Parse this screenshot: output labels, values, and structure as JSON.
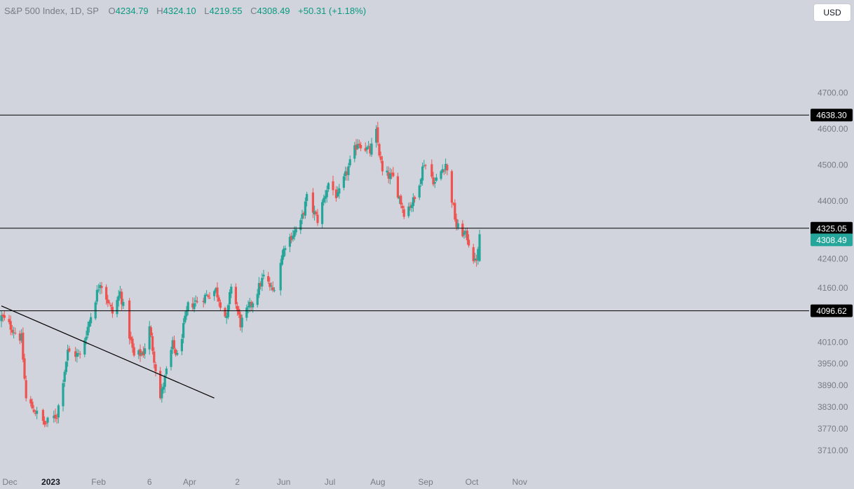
{
  "legend": {
    "symbol": "S&P 500 Index, 1D, SP",
    "open_label": "O",
    "open": "4234.79",
    "high_label": "H",
    "high": "4324.10",
    "low_label": "L",
    "low": "4219.55",
    "close_label": "C",
    "close": "4308.49",
    "change": "+50.31 (+1.18%)"
  },
  "currency_button": "USD",
  "colors": {
    "up": "#26a69a",
    "down": "#ef5350",
    "background": "#d1d4dc",
    "line": "#000000",
    "axis_text": "#787b86",
    "label_bg": "#000000",
    "last_price_bg": "#26a69a"
  },
  "chart_data": {
    "type": "candlestick",
    "y_axis": {
      "range": [
        3660,
        4760
      ],
      "ticks": [
        3710,
        3770,
        3830,
        3890,
        3950,
        4010,
        4160,
        4240,
        4400,
        4500,
        4600,
        4700
      ],
      "tick_labels": [
        "3710.00",
        "3770.00",
        "3830.00",
        "3890.00",
        "3950.00",
        "4010.00",
        "4160.00",
        "4240.00",
        "4400.00",
        "4500.00",
        "4600.00",
        "4700.00"
      ]
    },
    "x_axis": {
      "labels": [
        {
          "text": "Dec",
          "date": "2022-12-01"
        },
        {
          "text": "2023",
          "date": "2023-01-01",
          "bold": true
        },
        {
          "text": "Feb",
          "date": "2023-02-01"
        },
        {
          "text": "6",
          "date": "2023-03-06"
        },
        {
          "text": "Apr",
          "date": "2023-04-01"
        },
        {
          "text": "2",
          "date": "2023-05-02"
        },
        {
          "text": "Jun",
          "date": "2023-06-01"
        },
        {
          "text": "Jul",
          "date": "2023-07-01"
        },
        {
          "text": "Aug",
          "date": "2023-08-01"
        },
        {
          "text": "Sep",
          "date": "2023-09-01"
        },
        {
          "text": "Oct",
          "date": "2023-10-01"
        },
        {
          "text": "Nov",
          "date": "2023-11-01"
        }
      ]
    },
    "horizontal_levels": [
      {
        "value": 4638.3,
        "label": "4638.30"
      },
      {
        "value": 4325.05,
        "label": "4325.05"
      },
      {
        "value": 4096.62,
        "label": "4096.62"
      }
    ],
    "trendline": {
      "start": {
        "date": "2022-11-30",
        "price": 4110
      },
      "end": {
        "date": "2023-04-17",
        "price": 3855
      }
    },
    "last_price": {
      "value": 4308.49,
      "label": "4308.49"
    },
    "grid": false,
    "anchors": [
      [
        "2022-11-30",
        4080
      ],
      [
        "2022-12-01",
        4076
      ],
      [
        "2022-12-13",
        4019
      ],
      [
        "2022-12-16",
        3852
      ],
      [
        "2022-12-28",
        3783
      ],
      [
        "2023-01-05",
        3808
      ],
      [
        "2023-01-12",
        3983
      ],
      [
        "2023-01-20",
        3972
      ],
      [
        "2023-02-02",
        4179
      ],
      [
        "2023-02-10",
        4090
      ],
      [
        "2023-02-15",
        4147
      ],
      [
        "2023-02-24",
        3970
      ],
      [
        "2023-03-02",
        3981
      ],
      [
        "2023-03-06",
        4048
      ],
      [
        "2023-03-13",
        3855
      ],
      [
        "2023-03-21",
        4002
      ],
      [
        "2023-03-24",
        3970
      ],
      [
        "2023-03-31",
        4109
      ],
      [
        "2023-04-18",
        4154
      ],
      [
        "2023-04-25",
        4071
      ],
      [
        "2023-04-28",
        4169
      ],
      [
        "2023-05-04",
        4061
      ],
      [
        "2023-05-12",
        4124
      ],
      [
        "2023-05-19",
        4191
      ],
      [
        "2023-05-25",
        4151
      ],
      [
        "2023-06-02",
        4282
      ],
      [
        "2023-06-12",
        4338
      ],
      [
        "2023-06-16",
        4409
      ],
      [
        "2023-06-23",
        4348
      ],
      [
        "2023-06-30",
        4450
      ],
      [
        "2023-07-06",
        4411
      ],
      [
        "2023-07-14",
        4505
      ],
      [
        "2023-07-19",
        4565
      ],
      [
        "2023-07-27",
        4537
      ],
      [
        "2023-07-31",
        4589
      ],
      [
        "2023-08-04",
        4478
      ],
      [
        "2023-08-11",
        4464
      ],
      [
        "2023-08-18",
        4370
      ],
      [
        "2023-08-25",
        4405
      ],
      [
        "2023-08-31",
        4508
      ],
      [
        "2023-09-07",
        4451
      ],
      [
        "2023-09-14",
        4505
      ],
      [
        "2023-09-21",
        4330
      ],
      [
        "2023-09-28",
        4300
      ],
      [
        "2023-10-03",
        4229
      ],
      [
        "2023-10-05",
        4258
      ],
      [
        "2023-10-06",
        4308
      ]
    ]
  }
}
